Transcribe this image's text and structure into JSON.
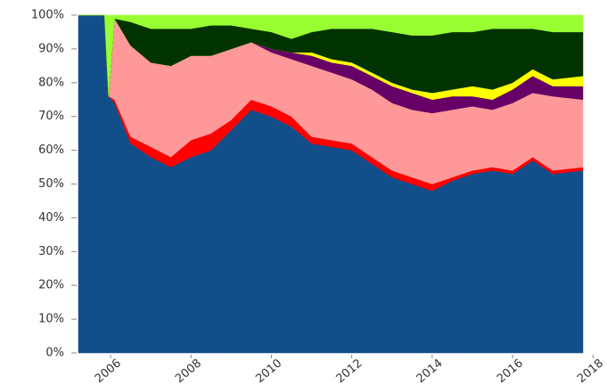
{
  "chart_data": {
    "type": "stacked_area",
    "x": [
      2005.2,
      2005.85,
      2005.95,
      2006.1,
      2006.5,
      2007.0,
      2007.5,
      2008.0,
      2008.5,
      2009.0,
      2009.5,
      2010.0,
      2010.5,
      2011.0,
      2011.5,
      2012.0,
      2012.5,
      2013.0,
      2013.5,
      2014.0,
      2014.5,
      2015.0,
      2015.5,
      2016.0,
      2016.5,
      2017.0,
      2017.75
    ],
    "series": [
      {
        "color": "#124e89",
        "values": [
          100,
          100,
          76,
          74,
          62,
          58,
          55,
          58,
          60,
          66,
          72,
          70,
          67,
          62,
          61,
          60,
          56,
          52,
          50,
          48,
          51,
          53,
          54,
          53,
          57,
          53,
          54
        ]
      },
      {
        "color": "#ff0000",
        "values": [
          0,
          0,
          0,
          1,
          2,
          3,
          3,
          5,
          5,
          3,
          3,
          3,
          3,
          2,
          2,
          2,
          2,
          2,
          2,
          2,
          1,
          1,
          1,
          1,
          1,
          1,
          1
        ]
      },
      {
        "color": "#ff9999",
        "values": [
          0,
          0,
          0,
          24,
          27,
          25,
          27,
          25,
          23,
          21,
          17,
          16,
          17,
          21,
          20,
          19,
          20,
          20,
          20,
          21,
          20,
          19,
          17,
          20,
          19,
          22,
          20
        ]
      },
      {
        "color": "#660066",
        "values": [
          0,
          0,
          0,
          0,
          0,
          0,
          0,
          0,
          0,
          0,
          0,
          1,
          2,
          3,
          3,
          4,
          4,
          5,
          5,
          4,
          4,
          3,
          3,
          4,
          5,
          3,
          4
        ]
      },
      {
        "color": "#ffff00",
        "values": [
          0,
          0,
          0,
          0,
          0,
          0,
          0,
          0,
          0,
          0,
          0,
          0,
          0,
          1,
          1,
          1,
          1,
          1,
          1,
          2,
          2,
          3,
          3,
          2,
          2,
          2,
          3
        ]
      },
      {
        "color": "#003300",
        "values": [
          0,
          0,
          0,
          0,
          7,
          10,
          11,
          8,
          9,
          7,
          4,
          5,
          4,
          6,
          9,
          10,
          13,
          15,
          16,
          17,
          17,
          16,
          18,
          16,
          12,
          14,
          13
        ]
      },
      {
        "color": "#99ff33",
        "values": [
          0,
          0,
          24,
          1,
          2,
          4,
          4,
          4,
          3,
          3,
          4,
          5,
          7,
          5,
          4,
          4,
          4,
          5,
          6,
          6,
          5,
          5,
          4,
          4,
          4,
          5,
          5
        ]
      }
    ],
    "xlim": [
      2005.2,
      2017.75
    ],
    "xticks": [
      2006,
      2008,
      2010,
      2012,
      2014,
      2016,
      2018
    ],
    "ylim": [
      0,
      100
    ],
    "yticks": [
      {
        "value": 0,
        "label": "0%"
      },
      {
        "value": 10,
        "label": "10%"
      },
      {
        "value": 20,
        "label": "20%"
      },
      {
        "value": 30,
        "label": "30%"
      },
      {
        "value": 40,
        "label": "40%"
      },
      {
        "value": 50,
        "label": "50%"
      },
      {
        "value": 60,
        "label": "60%"
      },
      {
        "value": 70,
        "label": "70%"
      },
      {
        "value": 80,
        "label": "80%"
      },
      {
        "value": 90,
        "label": "90%"
      },
      {
        "value": 100,
        "label": "100%"
      }
    ],
    "grid": false
  }
}
